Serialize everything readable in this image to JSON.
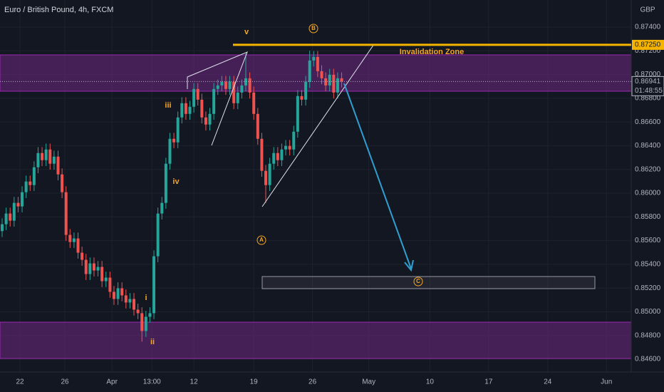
{
  "chart_data": {
    "type": "candlestick",
    "title": "Euro / British Pound, 4h, FXCM",
    "currency": "GBP",
    "up_color": "#26a69a",
    "down_color": "#ef5350",
    "open": [
      0.8568,
      0.85738,
      0.85828,
      0.85768,
      0.85918,
      0.85888,
      0.86008,
      0.86098,
      0.86068,
      0.86218,
      0.86338,
      0.86278,
      0.86368,
      0.86248,
      0.86308,
      0.86158,
      0.86008,
      0.85648,
      0.85588,
      0.85618,
      0.85498,
      0.85438,
      0.85318,
      0.85408,
      0.85348,
      0.85378,
      0.85258,
      0.85288,
      0.85168,
      0.85108,
      0.85198,
      0.85138,
      0.85078,
      0.85108,
      0.85018,
      0.84988,
      0.84838,
      0.84958,
      0.84988,
      0.85468,
      0.85828,
      0.85918,
      0.86248,
      0.86458,
      0.86428,
      0.86638,
      0.86758,
      0.86668,
      0.86728,
      0.86878,
      0.86788,
      0.86638,
      0.86578,
      0.86668,
      0.86878,
      0.86908,
      0.86938,
      0.86878,
      0.86938,
      0.86758,
      0.86848,
      0.86908,
      0.86968,
      0.86848,
      0.86668,
      0.86458,
      0.86188,
      0.86068,
      0.86248,
      0.86338,
      0.86278,
      0.86368,
      0.86398,
      0.86368,
      0.86518,
      0.86818,
      0.86788,
      0.86938,
      0.87118,
      0.87148,
      0.87028,
      0.86968,
      0.86908,
      0.86998,
      0.86848,
      0.86968
    ],
    "high": [
      0.85788,
      0.85878,
      0.85878,
      0.85968,
      0.85968,
      0.86058,
      0.86148,
      0.86148,
      0.86268,
      0.86388,
      0.86388,
      0.86418,
      0.86418,
      0.86358,
      0.86358,
      0.86208,
      0.86058,
      0.85698,
      0.85668,
      0.85668,
      0.85548,
      0.85488,
      0.85458,
      0.85458,
      0.85428,
      0.85428,
      0.85338,
      0.85338,
      0.85218,
      0.85248,
      0.85248,
      0.85188,
      0.85158,
      0.85158,
      0.85068,
      0.85038,
      0.85008,
      0.85038,
      0.85518,
      0.85878,
      0.85968,
      0.86298,
      0.86508,
      0.86508,
      0.86688,
      0.86808,
      0.86808,
      0.86778,
      0.86928,
      0.86928,
      0.86838,
      0.86688,
      0.86718,
      0.86928,
      0.86958,
      0.86988,
      0.86988,
      0.86988,
      0.86988,
      0.86898,
      0.86958,
      0.87178,
      0.87018,
      0.86898,
      0.86718,
      0.86508,
      0.86238,
      0.86298,
      0.86388,
      0.86388,
      0.86418,
      0.86448,
      0.86448,
      0.86568,
      0.86868,
      0.86868,
      0.86988,
      0.872,
      0.87198,
      0.87198,
      0.87078,
      0.87018,
      0.87048,
      0.87048,
      0.87018,
      0.87018
    ],
    "low": [
      0.8563,
      0.85688,
      0.85718,
      0.85718,
      0.85838,
      0.85838,
      0.85958,
      0.86018,
      0.86018,
      0.86168,
      0.86228,
      0.86228,
      0.86198,
      0.86198,
      0.86108,
      0.85958,
      0.85598,
      0.85538,
      0.85538,
      0.85448,
      0.85388,
      0.85268,
      0.85268,
      0.85298,
      0.85298,
      0.85208,
      0.85208,
      0.85118,
      0.85058,
      0.85058,
      0.85088,
      0.85028,
      0.85028,
      0.84968,
      0.84938,
      0.84748,
      0.84788,
      0.84908,
      0.84938,
      0.85418,
      0.85778,
      0.85868,
      0.86198,
      0.86378,
      0.86378,
      0.86588,
      0.86618,
      0.86618,
      0.86678,
      0.86738,
      0.86588,
      0.86528,
      0.86528,
      0.86618,
      0.86828,
      0.86858,
      0.86828,
      0.86828,
      0.86708,
      0.86708,
      0.86798,
      0.86858,
      0.86798,
      0.86618,
      0.86408,
      0.86138,
      0.85918,
      0.86018,
      0.86198,
      0.86228,
      0.86228,
      0.86318,
      0.86318,
      0.86318,
      0.86468,
      0.86738,
      0.86738,
      0.86888,
      0.87068,
      0.86978,
      0.86918,
      0.86858,
      0.86858,
      0.86798,
      0.86798,
      0.86891
    ],
    "close": [
      0.85738,
      0.85828,
      0.85768,
      0.85918,
      0.85888,
      0.86008,
      0.86098,
      0.86068,
      0.86218,
      0.86338,
      0.86278,
      0.86368,
      0.86248,
      0.86308,
      0.86158,
      0.86008,
      0.85648,
      0.85588,
      0.85618,
      0.85498,
      0.85438,
      0.85318,
      0.85408,
      0.85348,
      0.85378,
      0.85258,
      0.85288,
      0.85168,
      0.85108,
      0.85198,
      0.85138,
      0.85078,
      0.85108,
      0.85018,
      0.84988,
      0.84838,
      0.84958,
      0.84988,
      0.85468,
      0.85828,
      0.85918,
      0.86248,
      0.86458,
      0.86428,
      0.86638,
      0.86758,
      0.86668,
      0.86728,
      0.86878,
      0.86788,
      0.86638,
      0.86578,
      0.86668,
      0.86878,
      0.86908,
      0.86938,
      0.86878,
      0.86938,
      0.86758,
      0.86848,
      0.86908,
      0.86968,
      0.86848,
      0.86668,
      0.86458,
      0.86188,
      0.86068,
      0.86248,
      0.86338,
      0.86278,
      0.86368,
      0.86398,
      0.86368,
      0.86518,
      0.86818,
      0.86788,
      0.86938,
      0.87118,
      0.87148,
      0.87028,
      0.86968,
      0.86908,
      0.86998,
      0.86848,
      0.86968,
      0.86941
    ],
    "xlim": [
      -0.5357,
      157.5
    ],
    "xticks": [
      {
        "value": 4.46,
        "label": "22"
      },
      {
        "value": 15.7,
        "label": "26"
      },
      {
        "value": 27.5,
        "label": "Apr"
      },
      {
        "value": 37.5,
        "label": "13:00"
      },
      {
        "value": 48,
        "label": "12"
      },
      {
        "value": 63,
        "label": "19"
      },
      {
        "value": 77.7,
        "label": "26"
      },
      {
        "value": 91.8,
        "label": "May"
      },
      {
        "value": 107.1,
        "label": "10"
      },
      {
        "value": 121.8,
        "label": "17"
      },
      {
        "value": 136.6,
        "label": "24"
      },
      {
        "value": 151.3,
        "label": "Jun"
      }
    ],
    "ylim": [
      0.84492,
      0.87628
    ],
    "yticks": [
      {
        "value": 0.846,
        "label": "0.84600"
      },
      {
        "value": 0.848,
        "label": "0.84800"
      },
      {
        "value": 0.85,
        "label": "0.85000"
      },
      {
        "value": 0.852,
        "label": "0.85200"
      },
      {
        "value": 0.854,
        "label": "0.85400"
      },
      {
        "value": 0.856,
        "label": "0.85600"
      },
      {
        "value": 0.858,
        "label": "0.85800"
      },
      {
        "value": 0.86,
        "label": "0.86000"
      },
      {
        "value": 0.862,
        "label": "0.86200"
      },
      {
        "value": 0.864,
        "label": "0.86400"
      },
      {
        "value": 0.866,
        "label": "0.86600"
      },
      {
        "value": 0.868,
        "label": "0.86800"
      },
      {
        "value": 0.87,
        "label": "0.87000"
      },
      {
        "value": 0.872,
        "label": "0.87200"
      },
      {
        "value": 0.874,
        "label": "0.87400"
      }
    ],
    "level": {
      "value": 0.8725,
      "label": "0.87250",
      "color": "#f5b400"
    },
    "last_price": {
      "value": 0.86941,
      "label": "0.86941",
      "countdown": "01:48:55"
    },
    "annotations": [
      "v",
      "B",
      "iii",
      "iv",
      "i",
      "ii",
      "A",
      "C",
      "Invalidation Zone"
    ]
  }
}
